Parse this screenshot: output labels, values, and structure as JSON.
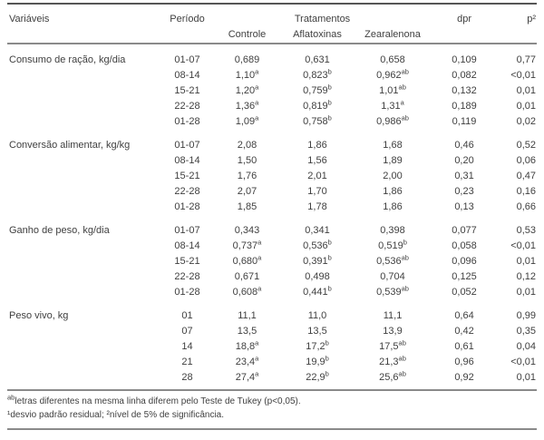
{
  "table": {
    "headers": {
      "variaveis": "Variáveis",
      "periodo": "Período",
      "tratamentos": "Tratamentos",
      "controle": "Controle",
      "aflatoxinas": "Aflatoxinas",
      "zearalenona": "Zearalenona",
      "dpr": "dpr",
      "p2": "p²"
    },
    "sections": [
      {
        "variavel": "Consumo de ração, kg/dia",
        "rows": [
          {
            "periodo": "01-07",
            "controle": "0,689",
            "aflatoxinas": "0,631",
            "zearalenona": "0,658",
            "dpr": "0,109",
            "p": "0,77"
          },
          {
            "periodo": "08-14",
            "controle": "1,10^a",
            "aflatoxinas": "0,823^b",
            "zearalenona": "0,962^ab",
            "dpr": "0,082",
            "p": "<0,01"
          },
          {
            "periodo": "15-21",
            "controle": "1,20^a",
            "aflatoxinas": "0,759^b",
            "zearalenona": "1,01^ab",
            "dpr": "0,132",
            "p": "0,01"
          },
          {
            "periodo": "22-28",
            "controle": "1,36^a",
            "aflatoxinas": "0,819^b",
            "zearalenona": "1,31^a",
            "dpr": "0,189",
            "p": "0,01"
          },
          {
            "periodo": "01-28",
            "controle": "1,09^a",
            "aflatoxinas": "0,758^b",
            "zearalenona": "0,986^ab",
            "dpr": "0,119",
            "p": "0,02"
          }
        ]
      },
      {
        "variavel": "Conversão alimentar, kg/kg",
        "rows": [
          {
            "periodo": "01-07",
            "controle": "2,08",
            "aflatoxinas": "1,86",
            "zearalenona": "1,68",
            "dpr": "0,46",
            "p": "0,52"
          },
          {
            "periodo": "08-14",
            "controle": "1,50",
            "aflatoxinas": "1,56",
            "zearalenona": "1,89",
            "dpr": "0,20",
            "p": "0,06"
          },
          {
            "periodo": "15-21",
            "controle": "1,76",
            "aflatoxinas": "2,01",
            "zearalenona": "2,00",
            "dpr": "0,31",
            "p": "0,47"
          },
          {
            "periodo": "22-28",
            "controle": "2,07",
            "aflatoxinas": "1,70",
            "zearalenona": "1,86",
            "dpr": "0,23",
            "p": "0,16"
          },
          {
            "periodo": "01-28",
            "controle": "1,85",
            "aflatoxinas": "1,78",
            "zearalenona": "1,86",
            "dpr": "0,13",
            "p": "0,66"
          }
        ]
      },
      {
        "variavel": "Ganho de peso, kg/dia",
        "rows": [
          {
            "periodo": "01-07",
            "controle": "0,343",
            "aflatoxinas": "0,341",
            "zearalenona": "0,398",
            "dpr": "0,077",
            "p": "0,53"
          },
          {
            "periodo": "08-14",
            "controle": "0,737^a",
            "aflatoxinas": "0,536^b",
            "zearalenona": "0,519^b",
            "dpr": "0,058",
            "p": "<0,01"
          },
          {
            "periodo": "15-21",
            "controle": "0,680^a",
            "aflatoxinas": "0,391^b",
            "zearalenona": "0,536^ab",
            "dpr": "0,096",
            "p": "0,01"
          },
          {
            "periodo": "22-28",
            "controle": "0,671",
            "aflatoxinas": "0,498",
            "zearalenona": "0,704",
            "dpr": "0,125",
            "p": "0,12"
          },
          {
            "periodo": "01-28",
            "controle": "0,608^a",
            "aflatoxinas": "0,441^b",
            "zearalenona": "0,539^ab",
            "dpr": "0,052",
            "p": "0,01"
          }
        ]
      },
      {
        "variavel": "Peso vivo, kg",
        "rows": [
          {
            "periodo": "01",
            "controle": "11,1",
            "aflatoxinas": "11,0",
            "zearalenona": "11,1",
            "dpr": "0,64",
            "p": "0,99"
          },
          {
            "periodo": "07",
            "controle": "13,5",
            "aflatoxinas": "13,5",
            "zearalenona": "13,9",
            "dpr": "0,42",
            "p": "0,35"
          },
          {
            "periodo": "14",
            "controle": "18,8^a",
            "aflatoxinas": "17,2^b",
            "zearalenona": "17,5^ab",
            "dpr": "0,61",
            "p": "0,04"
          },
          {
            "periodo": "21",
            "controle": "23,4^a",
            "aflatoxinas": "19,9^b",
            "zearalenona": "21,3^ab",
            "dpr": "0,96",
            "p": "<0,01"
          },
          {
            "periodo": "28",
            "controle": "27,4^a",
            "aflatoxinas": "22,9^b",
            "zearalenona": "25,6^ab",
            "dpr": "0,92",
            "p": "0,01"
          }
        ]
      }
    ],
    "footnotes": [
      {
        "sup": "ab",
        "text": "letras diferentes na mesma linha diferem pelo Teste de Tukey (p<0,05)."
      },
      {
        "sup": "",
        "text": "¹desvio padrão residual; ²nível de 5% de significância."
      }
    ]
  }
}
